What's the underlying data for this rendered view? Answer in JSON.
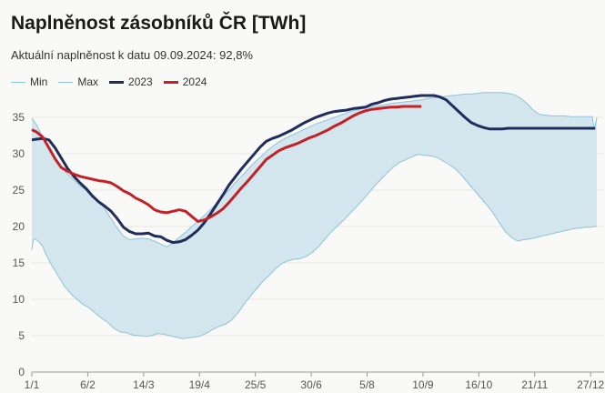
{
  "header": {
    "title": "Naplněnost zásobníků ČR [TWh]",
    "subtitle": "Aktuální naplněnost k datu 09.09.2024: 92,8%"
  },
  "legend": [
    {
      "label": "Min",
      "color": "#8fc3d8",
      "width": 1
    },
    {
      "label": "Max",
      "color": "#8fc3d8",
      "width": 1
    },
    {
      "label": "2023",
      "color": "#1f2d5c",
      "width": 3
    },
    {
      "label": "2024",
      "color": "#c42127",
      "width": 3
    }
  ],
  "chart_data": {
    "type": "area",
    "title": "Naplněnost zásobníků ČR [TWh]",
    "xlabel": "",
    "ylabel": "",
    "ylim": [
      0,
      37
    ],
    "xlim": [
      1,
      365
    ],
    "yticks": [
      0,
      5,
      10,
      15,
      20,
      25,
      30,
      35
    ],
    "xticks": [
      {
        "day": 1,
        "label": "1/1"
      },
      {
        "day": 37,
        "label": "6/2"
      },
      {
        "day": 73,
        "label": "14/3"
      },
      {
        "day": 109,
        "label": "19/4"
      },
      {
        "day": 145,
        "label": "25/5"
      },
      {
        "day": 181,
        "label": "30/6"
      },
      {
        "day": 217,
        "label": "5/8"
      },
      {
        "day": 253,
        "label": "10/9"
      },
      {
        "day": 289,
        "label": "16/10"
      },
      {
        "day": 325,
        "label": "21/11"
      },
      {
        "day": 361,
        "label": "27/12"
      }
    ],
    "grid": true,
    "colors": {
      "band": "#d3e6ee",
      "band_edge": "#8fc3d8",
      "y2023": "#1f2d5c",
      "y2024": "#c42127"
    },
    "series": [
      {
        "name": "Min",
        "x": [
          1,
          2,
          3,
          5,
          8,
          10,
          14,
          18,
          22,
          26,
          30,
          34,
          38,
          42,
          46,
          50,
          54,
          58,
          62,
          66,
          70,
          74,
          78,
          82,
          86,
          90,
          94,
          98,
          102,
          106,
          110,
          114,
          118,
          122,
          126,
          130,
          134,
          138,
          142,
          146,
          150,
          154,
          158,
          162,
          166,
          170,
          174,
          178,
          182,
          186,
          190,
          194,
          198,
          202,
          206,
          210,
          214,
          218,
          222,
          226,
          230,
          234,
          238,
          242,
          246,
          250,
          254,
          258,
          262,
          266,
          270,
          274,
          278,
          282,
          286,
          290,
          294,
          298,
          302,
          306,
          310,
          314,
          318,
          322,
          326,
          330,
          334,
          338,
          342,
          346,
          350,
          354,
          358,
          361,
          363,
          364,
          365
        ],
        "values": [
          16.8,
          18.2,
          18.3,
          18.0,
          17.3,
          16.2,
          14.6,
          13.2,
          11.8,
          10.8,
          10.0,
          9.3,
          8.8,
          8.1,
          7.4,
          6.8,
          6.0,
          5.5,
          5.4,
          5.1,
          5.0,
          4.9,
          5.0,
          5.3,
          5.2,
          5.0,
          4.8,
          4.6,
          4.7,
          4.8,
          5.0,
          5.4,
          5.9,
          6.3,
          6.6,
          7.2,
          8.2,
          9.4,
          10.5,
          11.5,
          12.5,
          13.3,
          14.2,
          14.9,
          15.3,
          15.5,
          15.6,
          15.9,
          16.5,
          17.3,
          18.3,
          19.3,
          20.1,
          20.9,
          21.8,
          22.7,
          23.6,
          24.6,
          25.6,
          26.5,
          27.4,
          28.2,
          28.8,
          29.2,
          29.6,
          29.9,
          29.8,
          29.7,
          29.5,
          29.0,
          28.5,
          27.9,
          27.0,
          26.0,
          25.0,
          24.0,
          23.0,
          21.9,
          20.6,
          19.3,
          18.5,
          18.0,
          18.2,
          18.3,
          18.5,
          18.7,
          18.9,
          19.1,
          19.3,
          19.5,
          19.7,
          19.8,
          19.9,
          19.9,
          20.0,
          20.0,
          20.0
        ]
      },
      {
        "name": "Max",
        "x": [
          1,
          4,
          8,
          12,
          16,
          20,
          24,
          28,
          32,
          36,
          40,
          44,
          48,
          52,
          56,
          60,
          64,
          68,
          72,
          76,
          80,
          84,
          88,
          92,
          96,
          100,
          104,
          108,
          112,
          116,
          120,
          124,
          128,
          132,
          136,
          140,
          144,
          148,
          152,
          156,
          160,
          164,
          168,
          172,
          176,
          180,
          184,
          188,
          192,
          196,
          200,
          204,
          208,
          212,
          216,
          220,
          224,
          228,
          232,
          236,
          240,
          244,
          248,
          252,
          256,
          260,
          264,
          268,
          272,
          276,
          280,
          284,
          288,
          292,
          296,
          300,
          304,
          308,
          312,
          316,
          320,
          324,
          328,
          332,
          336,
          340,
          344,
          348,
          352,
          356,
          360,
          362,
          363,
          364,
          365
        ],
        "values": [
          34.9,
          34.0,
          32.3,
          30.8,
          29.4,
          28.2,
          27.2,
          26.4,
          25.6,
          25.0,
          24.4,
          23.5,
          22.4,
          21.1,
          19.8,
          18.7,
          18.2,
          18.3,
          18.4,
          18.3,
          18.0,
          17.6,
          17.2,
          17.8,
          18.5,
          19.2,
          20.0,
          20.7,
          21.5,
          22.3,
          23.2,
          24.1,
          25.0,
          26.0,
          26.9,
          27.8,
          28.7,
          29.5,
          30.3,
          31.0,
          31.6,
          32.1,
          32.5,
          32.9,
          33.3,
          33.7,
          34.1,
          34.4,
          34.7,
          35.0,
          35.3,
          35.6,
          35.9,
          36.1,
          36.3,
          36.5,
          36.6,
          36.7,
          36.9,
          37.0,
          37.1,
          37.2,
          37.3,
          37.4,
          37.6,
          37.7,
          37.8,
          37.9,
          38.0,
          38.1,
          38.2,
          38.2,
          38.3,
          38.4,
          38.4,
          38.4,
          38.4,
          38.3,
          38.1,
          37.6,
          36.9,
          36.0,
          35.4,
          35.3,
          35.2,
          35.2,
          35.2,
          35.1,
          35.1,
          35.1,
          35.1,
          35.1,
          33.8,
          33.9,
          35.0
        ]
      },
      {
        "name": "2023",
        "x": [
          1,
          4,
          8,
          12,
          16,
          20,
          24,
          28,
          32,
          36,
          40,
          44,
          48,
          52,
          56,
          60,
          64,
          68,
          72,
          76,
          80,
          84,
          88,
          92,
          96,
          100,
          104,
          108,
          112,
          116,
          120,
          124,
          128,
          132,
          136,
          140,
          144,
          148,
          152,
          156,
          160,
          164,
          168,
          172,
          176,
          180,
          184,
          188,
          192,
          196,
          200,
          204,
          208,
          212,
          216,
          220,
          224,
          228,
          232,
          236,
          240,
          244,
          248,
          252,
          256,
          260,
          264,
          268,
          272,
          276,
          280,
          284,
          288,
          292,
          296,
          300,
          304,
          308,
          312,
          316,
          320,
          324,
          328,
          332,
          336,
          340,
          344,
          348,
          352,
          356,
          360,
          364
        ],
        "values": [
          31.9,
          32.0,
          32.1,
          31.9,
          30.8,
          29.4,
          28.0,
          26.9,
          26.0,
          25.2,
          24.2,
          23.4,
          22.8,
          22.1,
          21.1,
          19.9,
          19.3,
          19.0,
          19.0,
          19.1,
          18.7,
          18.6,
          18.1,
          17.8,
          17.9,
          18.2,
          18.8,
          19.5,
          20.5,
          21.7,
          23.0,
          24.3,
          25.7,
          26.8,
          27.9,
          28.9,
          29.9,
          30.9,
          31.7,
          32.1,
          32.4,
          32.8,
          33.2,
          33.7,
          34.2,
          34.6,
          35.0,
          35.3,
          35.6,
          35.8,
          35.9,
          36.0,
          36.2,
          36.3,
          36.4,
          36.8,
          37.0,
          37.3,
          37.5,
          37.6,
          37.7,
          37.8,
          37.9,
          38.0,
          38.0,
          38.0,
          37.8,
          37.4,
          36.6,
          35.8,
          35.0,
          34.3,
          33.9,
          33.6,
          33.4,
          33.4,
          33.4,
          33.5,
          33.5,
          33.5,
          33.5,
          33.5,
          33.5,
          33.5,
          33.5,
          33.5,
          33.5,
          33.5,
          33.5,
          33.5,
          33.5,
          33.5
        ],
        "note": "2023 continues to 27/12 in image"
      },
      {
        "name": "2024",
        "x": [
          1,
          4,
          8,
          12,
          16,
          20,
          24,
          28,
          32,
          36,
          40,
          44,
          48,
          52,
          56,
          60,
          64,
          68,
          72,
          76,
          80,
          84,
          88,
          92,
          96,
          100,
          104,
          108,
          112,
          116,
          120,
          124,
          128,
          132,
          136,
          140,
          144,
          148,
          152,
          156,
          160,
          164,
          168,
          172,
          176,
          180,
          184,
          188,
          192,
          196,
          200,
          204,
          208,
          212,
          216,
          220,
          224,
          228,
          232,
          236,
          240,
          244,
          248,
          252
        ],
        "values": [
          33.3,
          33.0,
          32.3,
          30.8,
          29.3,
          28.1,
          27.6,
          27.2,
          26.9,
          26.7,
          26.5,
          26.3,
          26.2,
          26.0,
          25.5,
          24.9,
          24.5,
          23.9,
          23.5,
          23.0,
          22.3,
          22.0,
          21.9,
          22.1,
          22.3,
          22.1,
          21.4,
          20.7,
          20.9,
          21.3,
          21.8,
          22.4,
          23.3,
          24.3,
          25.3,
          26.2,
          27.2,
          28.2,
          29.2,
          29.8,
          30.4,
          30.8,
          31.1,
          31.4,
          31.8,
          32.2,
          32.5,
          32.9,
          33.3,
          33.8,
          34.2,
          34.7,
          35.2,
          35.6,
          35.9,
          36.1,
          36.2,
          36.3,
          36.4,
          36.4,
          36.5,
          36.5,
          36.5,
          36.5
        ]
      }
    ]
  }
}
